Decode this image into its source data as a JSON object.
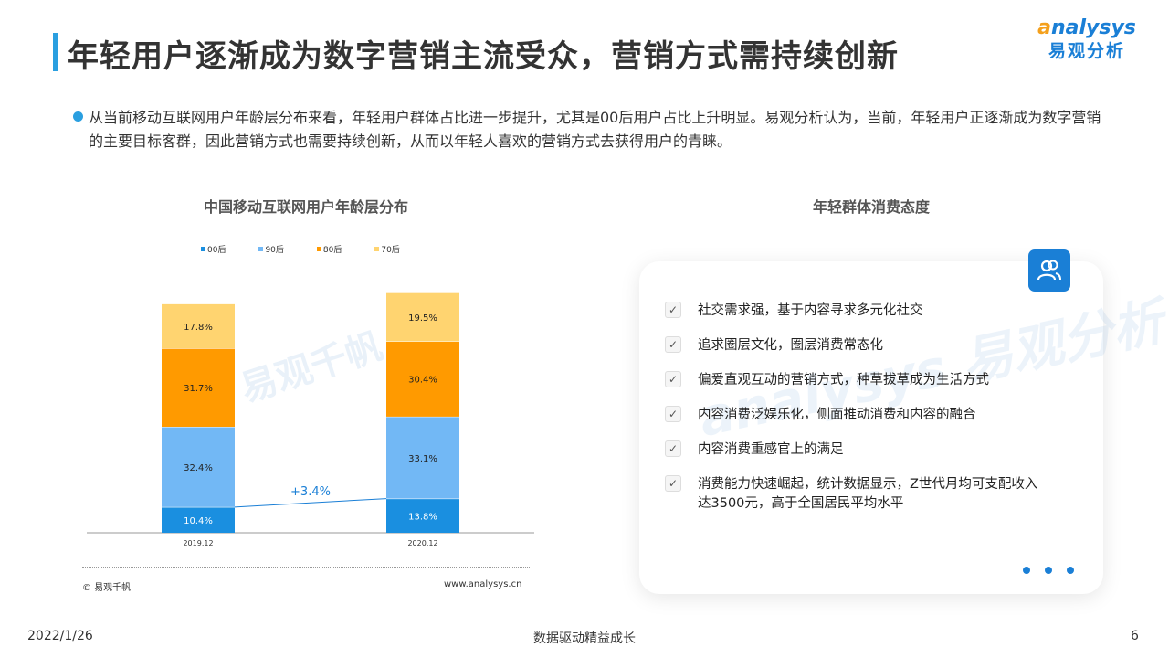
{
  "header": {
    "title": "年轻用户逐渐成为数字营销主流受众，营销方式需持续创新",
    "logo_en_prefix": "a",
    "logo_en_rest": "nalysys",
    "logo_cn": "易观分析"
  },
  "summary": {
    "text": "从当前移动互联网用户年龄层分布来看，年轻用户群体占比进一步提升，尤其是00后用户占比上升明显。易观分析认为，当前，年轻用户正逐渐成为数字营销的主要目标客群，因此营销方式也需要持续创新，从而以年轻人喜欢的营销方式去获得用户的青睐。"
  },
  "left_panel": {
    "source": "© 易观千帆",
    "url": "www.analysys.cn",
    "watermark": "易观千帆"
  },
  "chart_data": {
    "type": "bar",
    "stacked": true,
    "title": "中国移动互联网用户年龄层分布",
    "categories": [
      "2019.12",
      "2020.12"
    ],
    "series": [
      {
        "name": "00后",
        "color": "#1a8fe0",
        "values": [
          10.4,
          13.8
        ],
        "labels": [
          "10.4%",
          "13.8%"
        ]
      },
      {
        "name": "90后",
        "color": "#72b8f5",
        "values": [
          32.4,
          33.1
        ],
        "labels": [
          "32.4%",
          "33.1%"
        ]
      },
      {
        "name": "80后",
        "color": "#ff9a00",
        "values": [
          31.7,
          30.4
        ],
        "labels": [
          "31.7%",
          "30.4%"
        ]
      },
      {
        "name": "70后",
        "color": "#ffd470",
        "values": [
          17.8,
          19.5
        ],
        "labels": [
          "17.8%",
          "19.5%"
        ]
      }
    ],
    "annotation": "+3.4%",
    "legend_position": "top"
  },
  "right_panel": {
    "title": "年轻群体消费态度",
    "icon": "users-icon",
    "watermark": "analysys 易观分析",
    "items": [
      "社交需求强，基于内容寻求多元化社交",
      "追求圈层文化，圈层消费常态化",
      "偏爱直观互动的营销方式，种草拔草成为生活方式",
      "内容消费泛娱乐化，侧面推动消费和内容的融合",
      "内容消费重感官上的满足",
      "消费能力快速崛起，统计数据显示，Z世代月均可支配收入达3500元，高于全国居民平均水平"
    ]
  },
  "footer": {
    "date": "2022/1/26",
    "slogan": "数据驱动精益成长",
    "page": "6"
  }
}
